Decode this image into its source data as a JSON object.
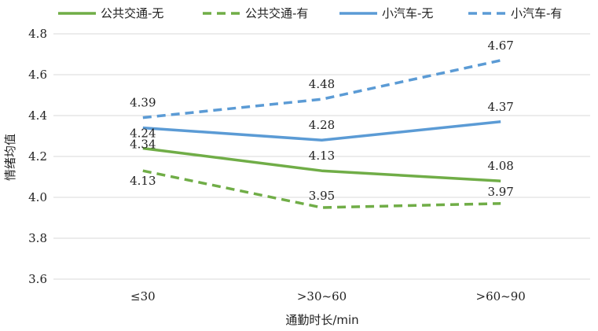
{
  "chart_data": {
    "type": "line",
    "categories": [
      "≤30",
      ">30~60",
      ">60~90"
    ],
    "series": [
      {
        "name": "公共交通-无",
        "values": [
          4.24,
          4.13,
          4.08
        ],
        "color": "#70ad47",
        "dash": false
      },
      {
        "name": "公共交通-有",
        "values": [
          4.13,
          3.95,
          3.97
        ],
        "color": "#70ad47",
        "dash": true
      },
      {
        "name": "小汽车-无",
        "values": [
          4.34,
          4.28,
          4.37
        ],
        "color": "#5b9bd5",
        "dash": false
      },
      {
        "name": "小汽车-有",
        "values": [
          4.39,
          4.48,
          4.67
        ],
        "color": "#5b9bd5",
        "dash": true
      }
    ],
    "xlabel": "通勤时长/min",
    "ylabel": "情绪均值",
    "ylim": [
      3.6,
      4.8
    ],
    "yticks": [
      "3.6",
      "3.8",
      "4.0",
      "4.2",
      "4.4",
      "4.6",
      "4.8"
    ],
    "grid": true,
    "legend_position": "top"
  }
}
